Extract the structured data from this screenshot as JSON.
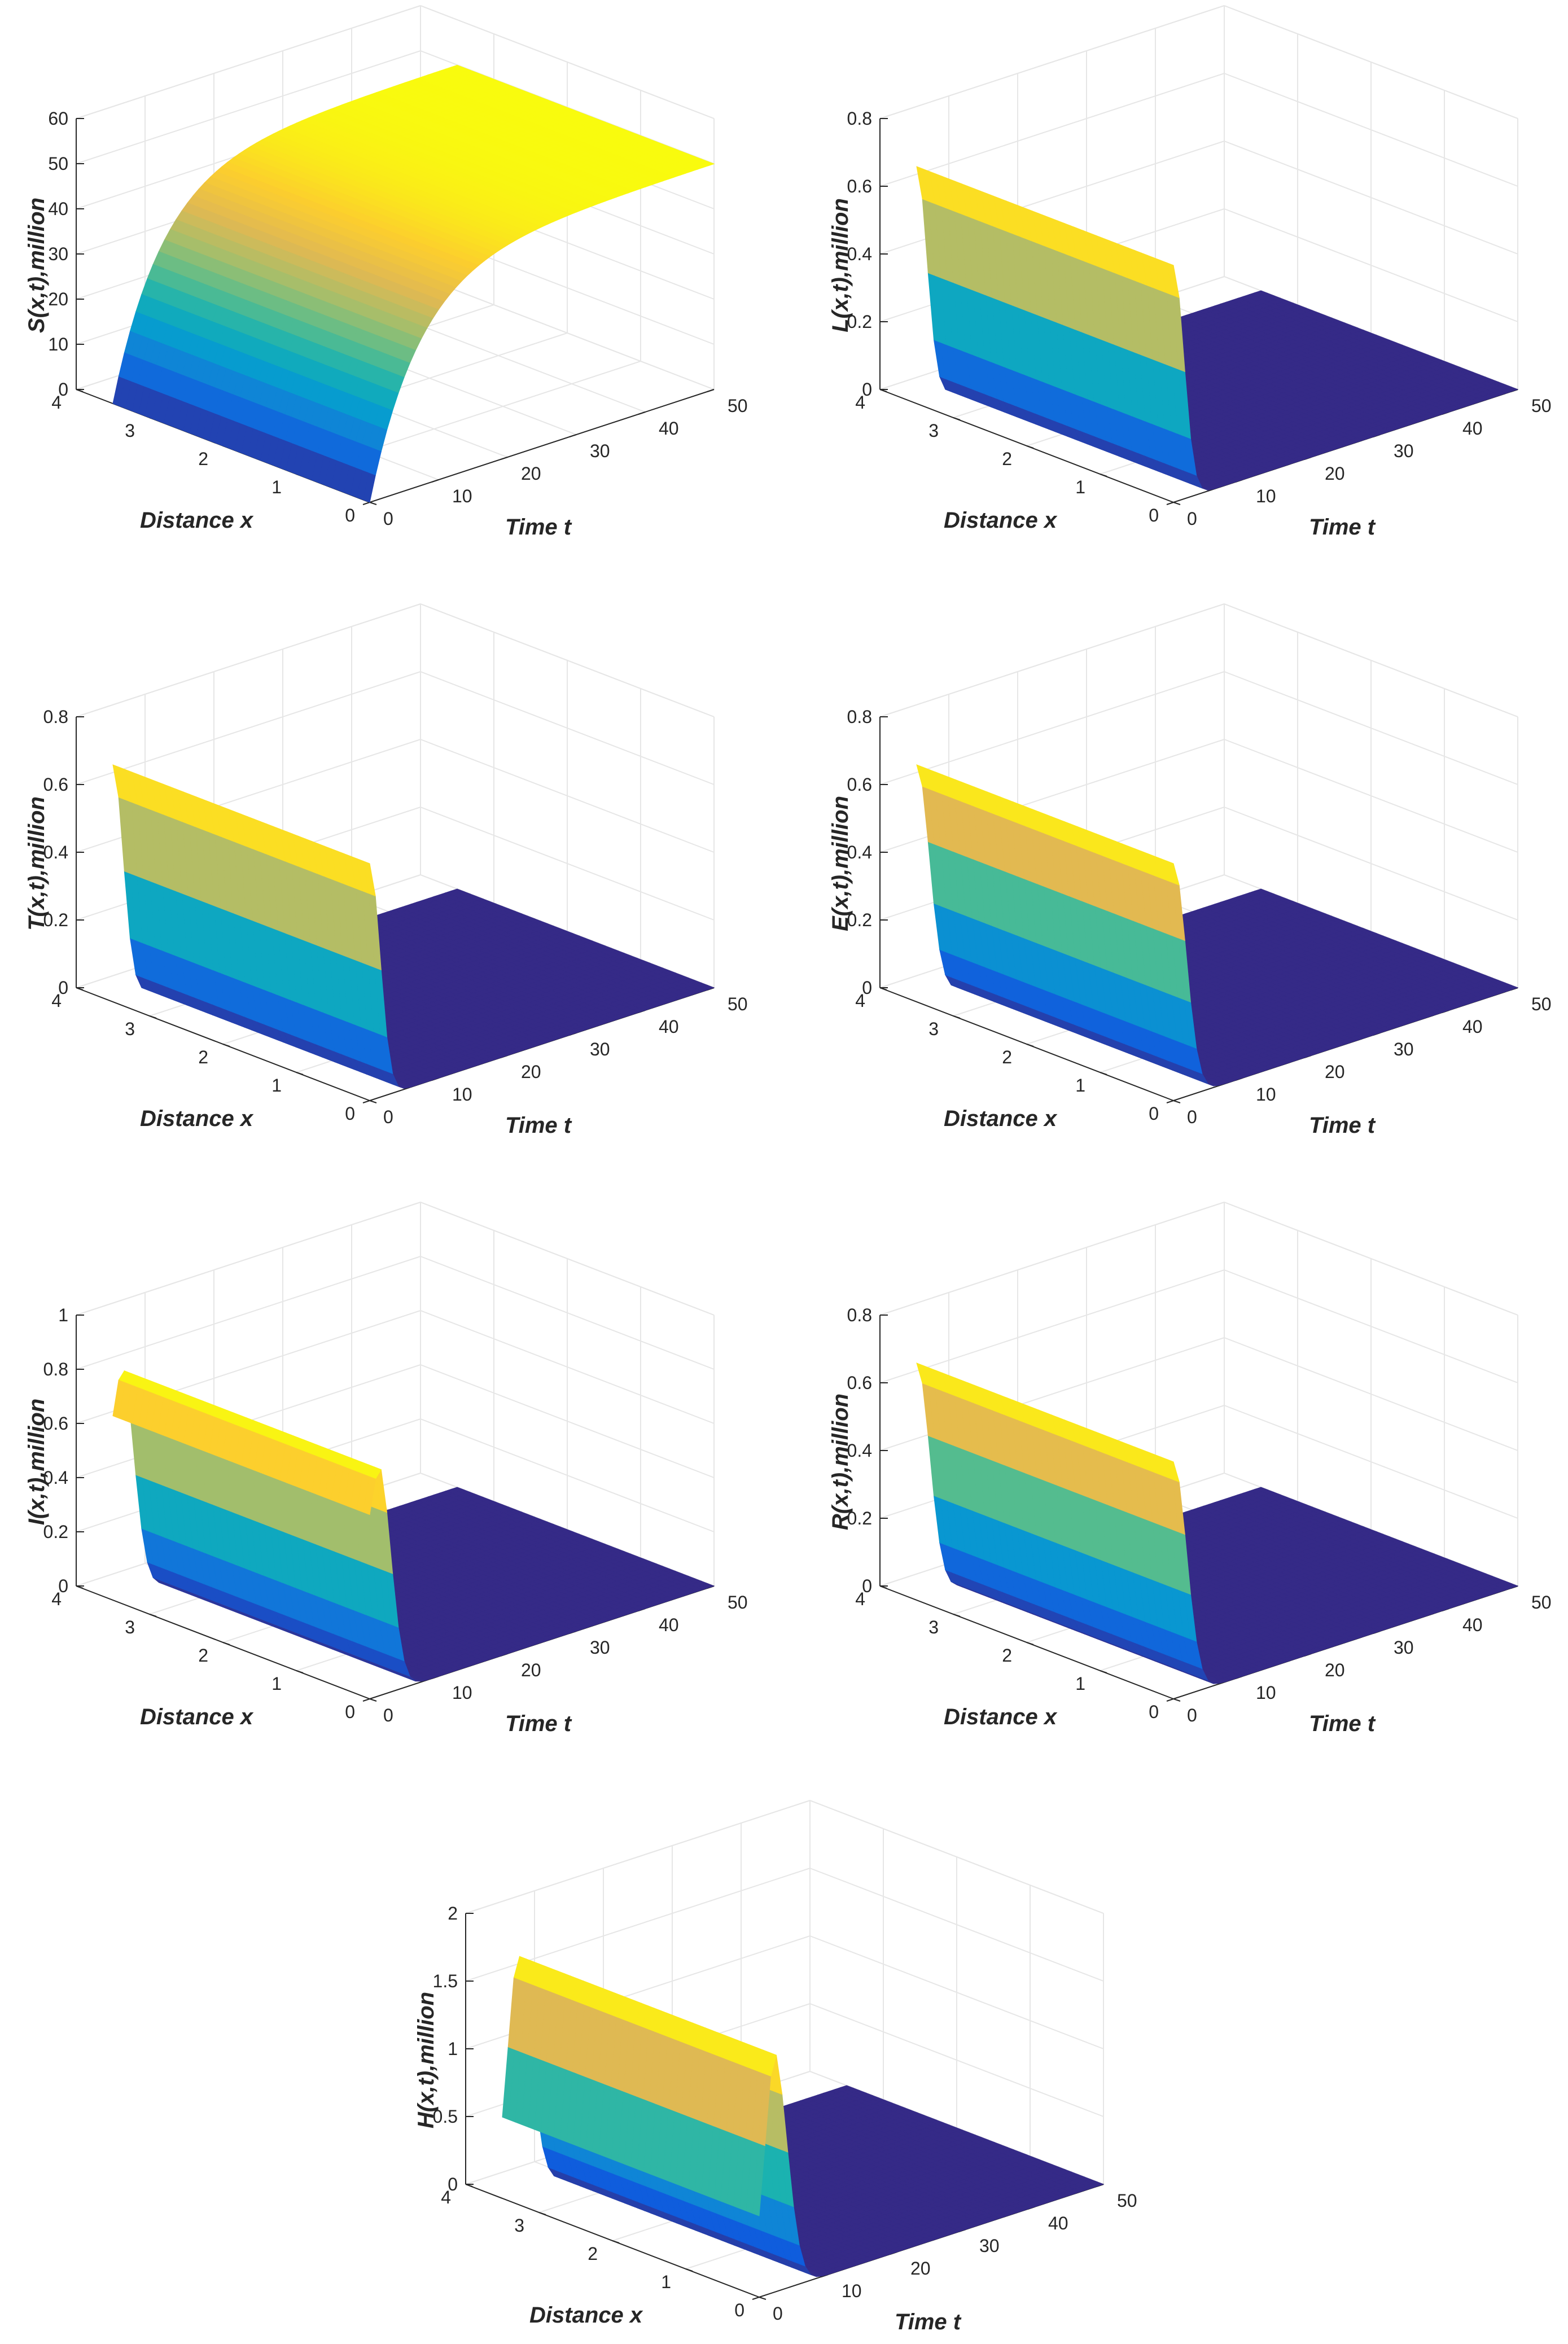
{
  "figure": {
    "common_xlabel": "Distance x",
    "common_tlabel": "Time t"
  },
  "chart_data": [
    {
      "type": "surface",
      "id": "S",
      "zlabel": "S(x,t),million",
      "xlabel": "Distance x",
      "ylabel": "Time t",
      "xlim": [
        0,
        4
      ],
      "tlim": [
        0,
        50
      ],
      "zlim": [
        0,
        60
      ],
      "x_ticks": [
        "0",
        "1",
        "2",
        "3",
        "4"
      ],
      "t_ticks": [
        "0",
        "10",
        "20",
        "30",
        "40",
        "50"
      ],
      "z_ticks": [
        "0",
        "10",
        "20",
        "30",
        "40",
        "50",
        "60"
      ],
      "x_range": [
        0,
        3.5
      ],
      "t_range": [
        0,
        50
      ],
      "profile": {
        "kind": "rise",
        "start": 0,
        "end": 50,
        "rate": 0.14
      },
      "colormap": "parula"
    },
    {
      "type": "surface",
      "id": "L",
      "zlabel": "L(x,t),million",
      "xlabel": "Distance x",
      "ylabel": "Time t",
      "xlim": [
        0,
        4
      ],
      "tlim": [
        0,
        50
      ],
      "zlim": [
        0,
        0.8
      ],
      "x_ticks": [
        "0",
        "1",
        "2",
        "3",
        "4"
      ],
      "t_ticks": [
        "0",
        "10",
        "20",
        "30",
        "40",
        "50"
      ],
      "z_ticks": [
        "0",
        "0.2",
        "0.4",
        "0.6",
        "0.8"
      ],
      "x_range": [
        0,
        3.5
      ],
      "t_range": [
        0,
        50
      ],
      "profile": {
        "kind": "decay",
        "start": 0.7,
        "rate": 0.45
      },
      "colormap": "parula"
    },
    {
      "type": "surface",
      "id": "T",
      "zlabel": "T(x,t),million",
      "xlabel": "Distance x",
      "ylabel": "Time t",
      "xlim": [
        0,
        4
      ],
      "tlim": [
        0,
        50
      ],
      "zlim": [
        0,
        0.8
      ],
      "x_ticks": [
        "0",
        "1",
        "2",
        "3",
        "4"
      ],
      "t_ticks": [
        "0",
        "10",
        "20",
        "30",
        "40",
        "50"
      ],
      "z_ticks": [
        "0",
        "0.2",
        "0.4",
        "0.6",
        "0.8"
      ],
      "x_range": [
        0,
        3.5
      ],
      "t_range": [
        0,
        50
      ],
      "profile": {
        "kind": "decay",
        "start": 0.7,
        "rate": 0.45
      },
      "colormap": "parula"
    },
    {
      "type": "surface",
      "id": "E",
      "zlabel": "E(x,t),million",
      "xlabel": "Distance x",
      "ylabel": "Time t",
      "xlim": [
        0,
        4
      ],
      "tlim": [
        0,
        50
      ],
      "zlim": [
        0,
        0.8
      ],
      "x_ticks": [
        "0",
        "1",
        "2",
        "3",
        "4"
      ],
      "t_ticks": [
        "0",
        "10",
        "20",
        "30",
        "40",
        "50"
      ],
      "z_ticks": [
        "0",
        "0.2",
        "0.4",
        "0.6",
        "0.8"
      ],
      "x_range": [
        0,
        3.5
      ],
      "t_range": [
        0,
        50
      ],
      "profile": {
        "kind": "decay",
        "start": 0.7,
        "rate": 0.3
      },
      "colormap": "parula"
    },
    {
      "type": "surface",
      "id": "I",
      "zlabel": "I(x,t),million",
      "xlabel": "Distance x",
      "ylabel": "Time t",
      "xlim": [
        0,
        4
      ],
      "tlim": [
        0,
        50
      ],
      "zlim": [
        0,
        1
      ],
      "x_ticks": [
        "0",
        "1",
        "2",
        "3",
        "4"
      ],
      "t_ticks": [
        "0",
        "10",
        "20",
        "30",
        "40",
        "50"
      ],
      "z_ticks": [
        "0",
        "0.2",
        "0.4",
        "0.6",
        "0.8",
        "1"
      ],
      "x_range": [
        0,
        3.5
      ],
      "t_range": [
        0,
        50
      ],
      "profile": {
        "kind": "bump",
        "start": 0.68,
        "peak": 0.86,
        "tpeak": 1.2,
        "rate": 0.3
      },
      "colormap": "parula"
    },
    {
      "type": "surface",
      "id": "R",
      "zlabel": "R(x,t),million",
      "xlabel": "Distance x",
      "ylabel": "Time t",
      "xlim": [
        0,
        4
      ],
      "tlim": [
        0,
        50
      ],
      "zlim": [
        0,
        0.8
      ],
      "x_ticks": [
        "0",
        "1",
        "2",
        "3",
        "4"
      ],
      "t_ticks": [
        "0",
        "10",
        "20",
        "30",
        "40",
        "50"
      ],
      "z_ticks": [
        "0",
        "0.2",
        "0.4",
        "0.6",
        "0.8"
      ],
      "x_range": [
        0,
        3.5
      ],
      "t_range": [
        0,
        50
      ],
      "profile": {
        "kind": "decay",
        "start": 0.7,
        "rate": 0.28
      },
      "colormap": "parula"
    },
    {
      "type": "surface",
      "id": "H",
      "zlabel": "H(x,t),million",
      "xlabel": "Distance x",
      "ylabel": "Time t",
      "xlim": [
        0,
        4
      ],
      "tlim": [
        0,
        50
      ],
      "zlim": [
        0,
        2
      ],
      "x_ticks": [
        "0",
        "1",
        "2",
        "3",
        "4"
      ],
      "t_ticks": [
        "0",
        "10",
        "20",
        "30",
        "40",
        "50"
      ],
      "z_ticks": [
        "0",
        "0.5",
        "1",
        "1.5",
        "2"
      ],
      "x_range": [
        0,
        3.5
      ],
      "t_range": [
        0,
        50
      ],
      "profile": {
        "kind": "bump",
        "start": 0.6,
        "peak": 1.8,
        "tpeak": 2.0,
        "rate": 0.25
      },
      "colormap": "parula"
    }
  ]
}
